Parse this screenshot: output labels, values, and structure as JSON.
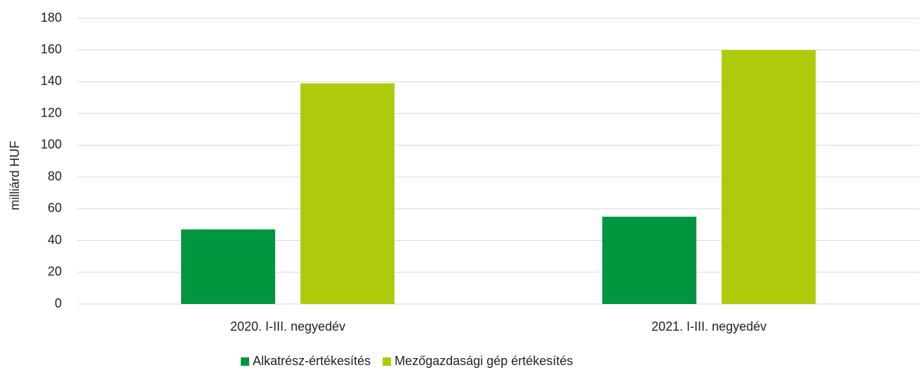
{
  "chart_data": {
    "type": "bar",
    "y_label": "milliárd HUF",
    "categories": [
      "2020. I-III. negyedév",
      "2021. I-III. negyedév"
    ],
    "series": [
      {
        "name": "Alkatrész-értékesítés",
        "color": "#009640",
        "values": [
          47,
          55
        ]
      },
      {
        "name": "Mezőgazdasági gép értékesítés",
        "color": "#afca0b",
        "values": [
          139,
          160
        ]
      }
    ],
    "ylim": [
      0,
      180
    ],
    "yticks": [
      0,
      20,
      40,
      60,
      80,
      100,
      120,
      140,
      160,
      180
    ],
    "grid": true,
    "legend": "bottom"
  }
}
